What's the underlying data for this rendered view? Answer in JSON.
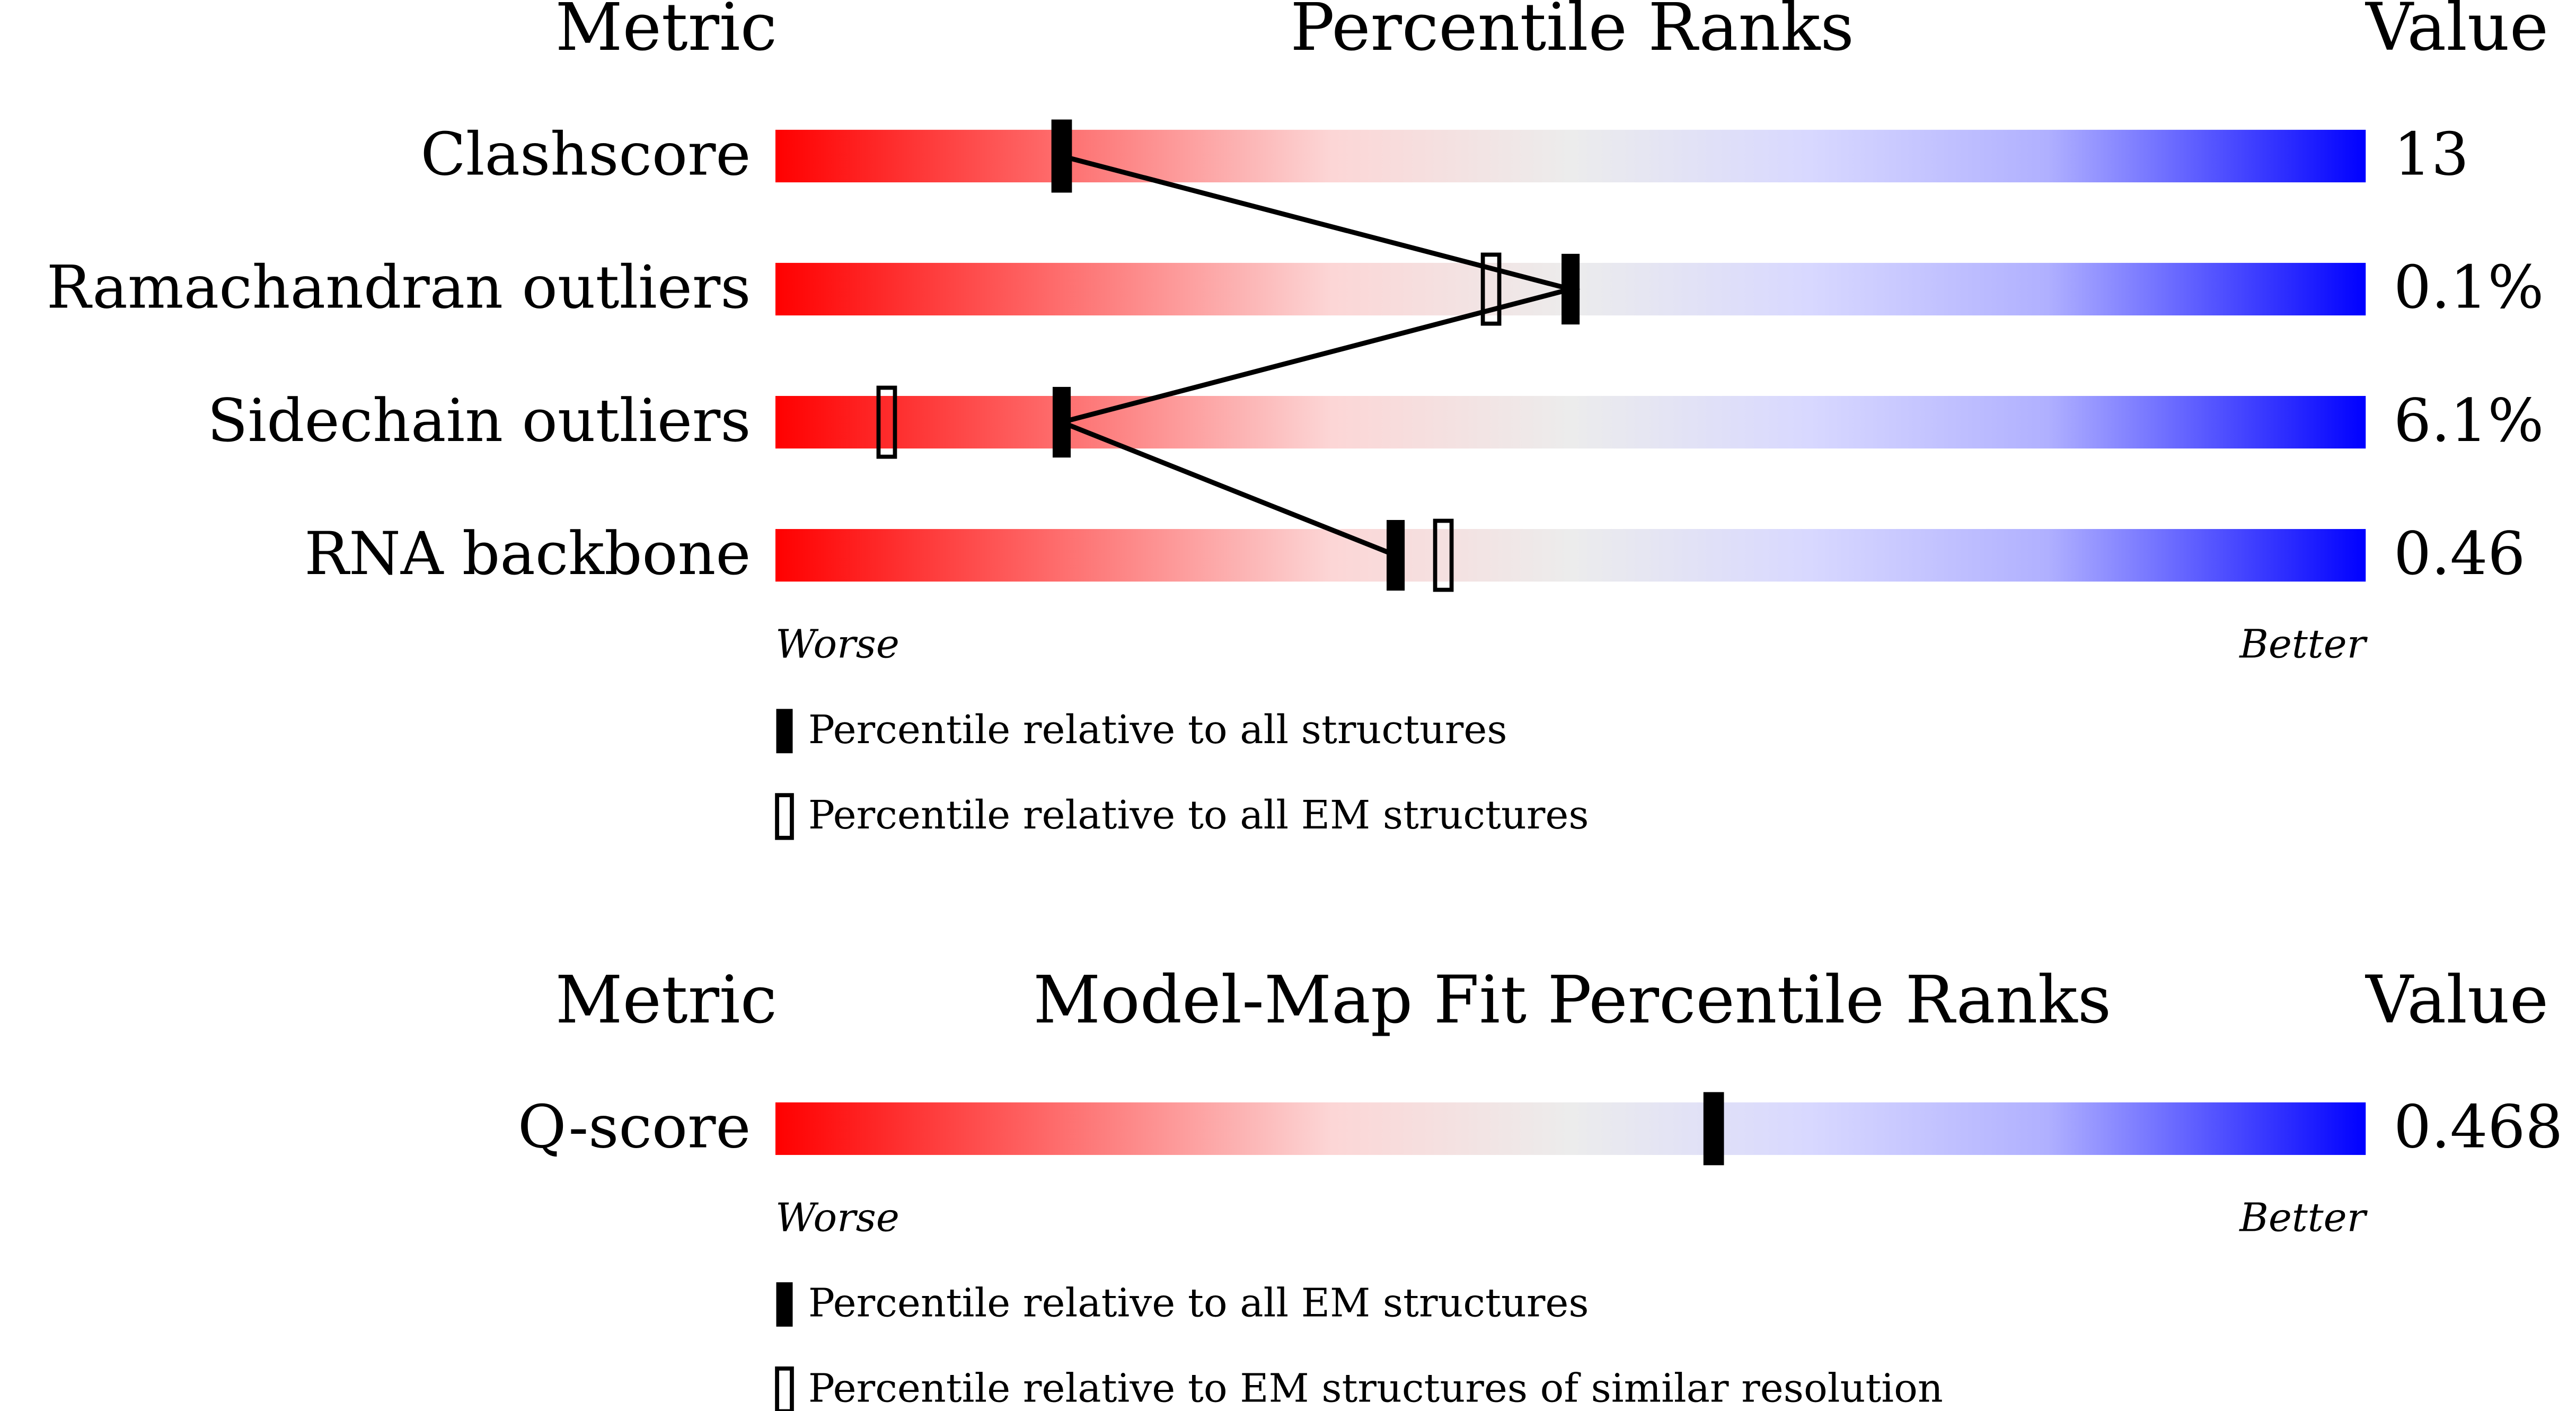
{
  "chart_data": [
    {
      "type": "percentile",
      "metric_header": "Metric",
      "title": "Percentile Ranks",
      "value_header": "Value",
      "categories": [
        "Clashscore",
        "Ramachandran outliers",
        "Sidechain outliers",
        "RNA backbone"
      ],
      "metric_values": [
        "13",
        "0.1%",
        "6.1%",
        "0.46"
      ],
      "xlim": [
        0,
        100
      ],
      "worse_label": "Worse",
      "better_label": "Better",
      "series": [
        {
          "name": "Percentile relative to all structures",
          "style": "filled",
          "values": [
            18,
            50,
            18,
            39
          ]
        },
        {
          "name": "Percentile relative to all EM structures",
          "style": "open",
          "values": [
            18,
            45,
            7,
            42
          ]
        }
      ]
    },
    {
      "type": "percentile",
      "metric_header": "Metric",
      "title": "Model-Map Fit Percentile Ranks",
      "value_header": "Value",
      "categories": [
        "Q-score"
      ],
      "metric_values": [
        "0.468"
      ],
      "xlim": [
        0,
        100
      ],
      "worse_label": "Worse",
      "better_label": "Better",
      "series": [
        {
          "name": "Percentile relative to all EM structures",
          "style": "filled",
          "values": [
            59
          ]
        },
        {
          "name": "Percentile relative to EM structures of similar resolution",
          "style": "open",
          "values": [
            59
          ]
        }
      ]
    }
  ]
}
